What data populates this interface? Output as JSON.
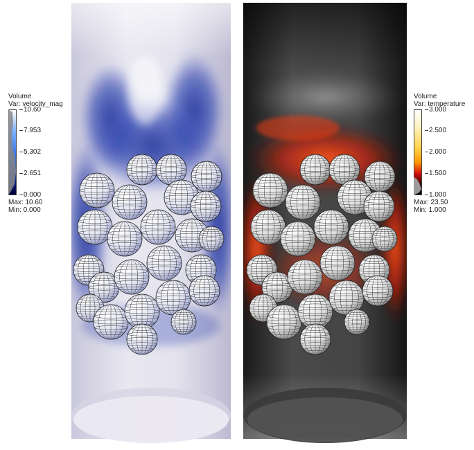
{
  "left_panel": {
    "legend": {
      "title": "Volume",
      "var_label": "Var: velocity_mag",
      "ticks": [
        "10.60",
        "7.953",
        "5.302",
        "2.651",
        "0.000"
      ],
      "max_label": "Max: 10.60",
      "min_label": "Min: 0.000",
      "colors": {
        "top": "#ffffff",
        "mid": "#2f6fe0",
        "bottom": "#000033"
      }
    }
  },
  "right_panel": {
    "legend": {
      "title": "Volume",
      "var_label": "Var: temperature",
      "ticks": [
        "3.000",
        "2.500",
        "2.000",
        "1.500",
        "1.000"
      ],
      "max_label": "Max: 23.50",
      "min_label": "Min: 1.000",
      "colors": {
        "top": "#ffffff",
        "upper": "#ffe680",
        "mid": "#ff9900",
        "lower": "#cc0000",
        "bottom": "#000000"
      }
    }
  }
}
